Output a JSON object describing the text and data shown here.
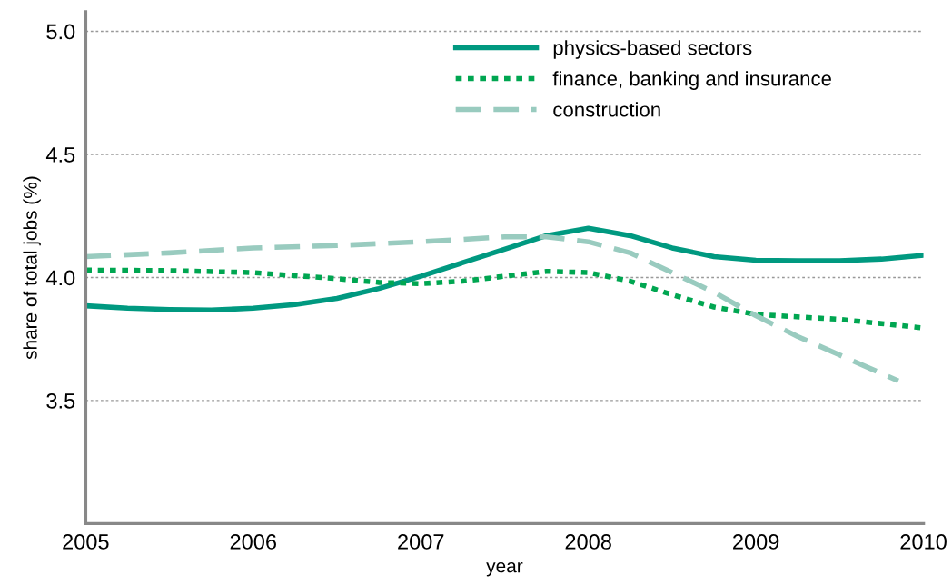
{
  "chart_data": {
    "type": "line",
    "xlabel": "year",
    "ylabel": "share of total jobs (%)",
    "xlim": [
      2005,
      2010
    ],
    "xticks": [
      2005,
      2006,
      2007,
      2008,
      2009,
      2010
    ],
    "ylim": [
      3.0,
      5.08
    ],
    "yticks": [
      {
        "value": 3.0,
        "label": null
      },
      3.5,
      {
        "value": 4.0,
        "label": "4.0"
      },
      4.5,
      {
        "value": 5.0,
        "label": "5.0"
      }
    ],
    "grid": "y",
    "legend": "top",
    "marker": "none",
    "series": [
      {
        "name": "physics-based sectors",
        "color": "#009980",
        "line_style": "solid",
        "x": [
          2005,
          2005.25,
          2005.5,
          2005.75,
          2006,
          2006.25,
          2006.5,
          2006.75,
          2007,
          2007.25,
          2007.5,
          2007.75,
          2008,
          2008.25,
          2008.5,
          2008.75,
          2009,
          2009.25,
          2009.5,
          2009.75,
          2010
        ],
        "values": [
          3.885,
          3.875,
          3.87,
          3.868,
          3.875,
          3.89,
          3.915,
          3.955,
          4.005,
          4.06,
          4.115,
          4.17,
          4.2,
          4.17,
          4.12,
          4.085,
          4.07,
          4.068,
          4.068,
          4.075,
          4.09
        ]
      },
      {
        "name": "finance, banking and insurance",
        "color": "#00a651",
        "line_style": "dotted",
        "x": [
          2005,
          2005.5,
          2006,
          2006.5,
          2006.75,
          2007,
          2007.25,
          2007.5,
          2007.75,
          2008,
          2008.25,
          2008.5,
          2008.75,
          2009,
          2009.5,
          2010
        ],
        "values": [
          4.03,
          4.028,
          4.02,
          3.995,
          3.98,
          3.975,
          3.985,
          4.005,
          4.025,
          4.02,
          3.985,
          3.93,
          3.88,
          3.85,
          3.83,
          3.795
        ]
      },
      {
        "name": "construction",
        "color": "#99cbbf",
        "line_style": "dashed",
        "x": [
          2005,
          2005.5,
          2006,
          2006.5,
          2007,
          2007.5,
          2007.75,
          2008,
          2008.25,
          2008.5,
          2008.75,
          2009,
          2009.25,
          2009.5,
          2009.75,
          2009.85
        ],
        "values": [
          4.085,
          4.1,
          4.12,
          4.13,
          4.145,
          4.165,
          4.165,
          4.145,
          4.1,
          4.02,
          3.94,
          3.845,
          3.76,
          3.685,
          3.61,
          3.58
        ]
      }
    ]
  }
}
